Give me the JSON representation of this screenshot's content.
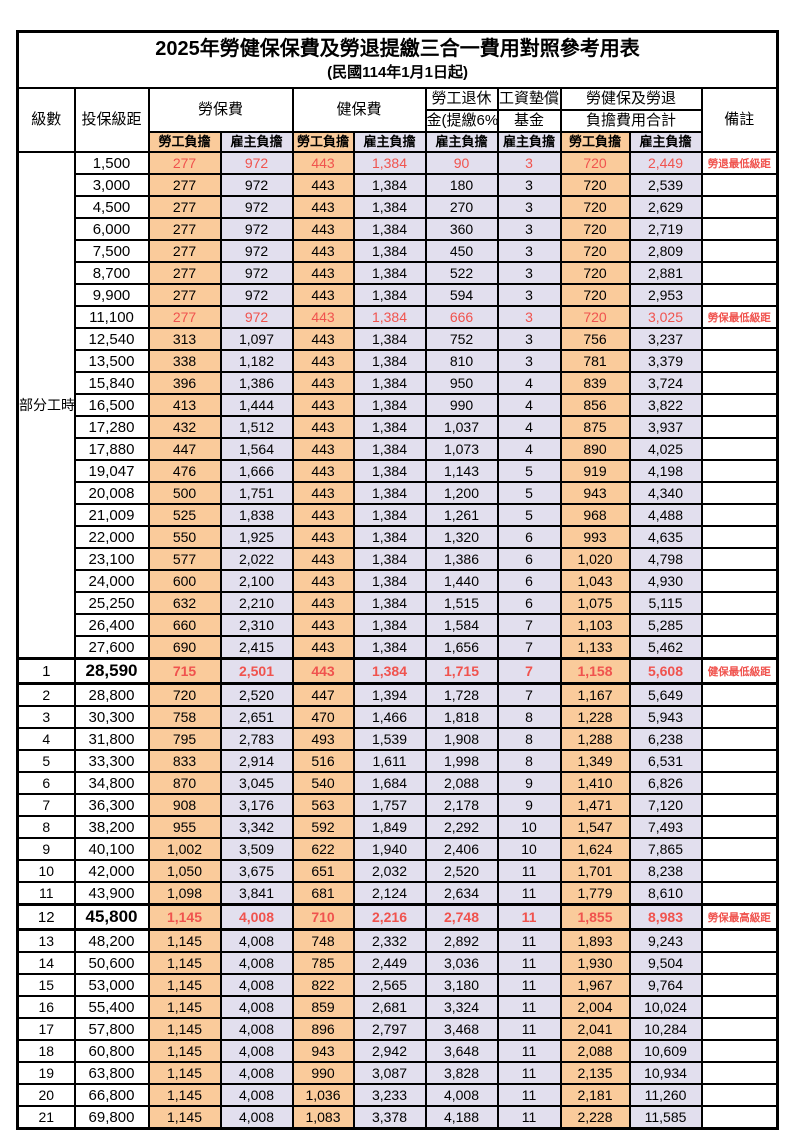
{
  "title": "2025年勞健保保費及勞退提繳三合一費用對照參考用表",
  "subtitle": "(民國114年1月1日起)",
  "colors": {
    "worker_bg": "#FACB9B",
    "employer_bg": "#E2DFEE",
    "highlight_text": "#F0534E",
    "border": "#000000"
  },
  "header": {
    "level": "級數",
    "bracket": "投保級距",
    "labor_ins": "勞保費",
    "health_ins": "健保費",
    "pension_l1": "勞工退休",
    "pension_l2": "金(提繳6%)",
    "wage_fund_l1": "工資墊償",
    "wage_fund_l2": "基金",
    "total_l1": "勞健保及勞退",
    "total_l2": "負擔費用合計",
    "remark": "備註",
    "worker": "勞工負擔",
    "employer": "雇主負擔"
  },
  "part_time_label": "部分工時",
  "rows": [
    {
      "level": "部分工時",
      "level_rowspan": 23,
      "bracket": "1,500",
      "values": [
        "277",
        "972",
        "443",
        "1,384",
        "90",
        "3",
        "720",
        "2,449"
      ],
      "remark": "勞退最低級距",
      "red": true,
      "emphasis": false
    },
    {
      "level": null,
      "bracket": "3,000",
      "values": [
        "277",
        "972",
        "443",
        "1,384",
        "180",
        "3",
        "720",
        "2,539"
      ],
      "remark": "",
      "red": false,
      "emphasis": false
    },
    {
      "level": null,
      "bracket": "4,500",
      "values": [
        "277",
        "972",
        "443",
        "1,384",
        "270",
        "3",
        "720",
        "2,629"
      ],
      "remark": "",
      "red": false,
      "emphasis": false
    },
    {
      "level": null,
      "bracket": "6,000",
      "values": [
        "277",
        "972",
        "443",
        "1,384",
        "360",
        "3",
        "720",
        "2,719"
      ],
      "remark": "",
      "red": false,
      "emphasis": false
    },
    {
      "level": null,
      "bracket": "7,500",
      "values": [
        "277",
        "972",
        "443",
        "1,384",
        "450",
        "3",
        "720",
        "2,809"
      ],
      "remark": "",
      "red": false,
      "emphasis": false
    },
    {
      "level": null,
      "bracket": "8,700",
      "values": [
        "277",
        "972",
        "443",
        "1,384",
        "522",
        "3",
        "720",
        "2,881"
      ],
      "remark": "",
      "red": false,
      "emphasis": false
    },
    {
      "level": null,
      "bracket": "9,900",
      "values": [
        "277",
        "972",
        "443",
        "1,384",
        "594",
        "3",
        "720",
        "2,953"
      ],
      "remark": "",
      "red": false,
      "emphasis": false
    },
    {
      "level": null,
      "bracket": "11,100",
      "values": [
        "277",
        "972",
        "443",
        "1,384",
        "666",
        "3",
        "720",
        "3,025"
      ],
      "remark": "勞保最低級距",
      "red": true,
      "emphasis": false
    },
    {
      "level": null,
      "bracket": "12,540",
      "values": [
        "313",
        "1,097",
        "443",
        "1,384",
        "752",
        "3",
        "756",
        "3,237"
      ],
      "remark": "",
      "red": false,
      "emphasis": false
    },
    {
      "level": null,
      "bracket": "13,500",
      "values": [
        "338",
        "1,182",
        "443",
        "1,384",
        "810",
        "3",
        "781",
        "3,379"
      ],
      "remark": "",
      "red": false,
      "emphasis": false
    },
    {
      "level": null,
      "bracket": "15,840",
      "values": [
        "396",
        "1,386",
        "443",
        "1,384",
        "950",
        "4",
        "839",
        "3,724"
      ],
      "remark": "",
      "red": false,
      "emphasis": false
    },
    {
      "level": null,
      "bracket": "16,500",
      "values": [
        "413",
        "1,444",
        "443",
        "1,384",
        "990",
        "4",
        "856",
        "3,822"
      ],
      "remark": "",
      "red": false,
      "emphasis": false
    },
    {
      "level": null,
      "bracket": "17,280",
      "values": [
        "432",
        "1,512",
        "443",
        "1,384",
        "1,037",
        "4",
        "875",
        "3,937"
      ],
      "remark": "",
      "red": false,
      "emphasis": false
    },
    {
      "level": null,
      "bracket": "17,880",
      "values": [
        "447",
        "1,564",
        "443",
        "1,384",
        "1,073",
        "4",
        "890",
        "4,025"
      ],
      "remark": "",
      "red": false,
      "emphasis": false
    },
    {
      "level": null,
      "bracket": "19,047",
      "values": [
        "476",
        "1,666",
        "443",
        "1,384",
        "1,143",
        "5",
        "919",
        "4,198"
      ],
      "remark": "",
      "red": false,
      "emphasis": false
    },
    {
      "level": null,
      "bracket": "20,008",
      "values": [
        "500",
        "1,751",
        "443",
        "1,384",
        "1,200",
        "5",
        "943",
        "4,340"
      ],
      "remark": "",
      "red": false,
      "emphasis": false
    },
    {
      "level": null,
      "bracket": "21,009",
      "values": [
        "525",
        "1,838",
        "443",
        "1,384",
        "1,261",
        "5",
        "968",
        "4,488"
      ],
      "remark": "",
      "red": false,
      "emphasis": false
    },
    {
      "level": null,
      "bracket": "22,000",
      "values": [
        "550",
        "1,925",
        "443",
        "1,384",
        "1,320",
        "6",
        "993",
        "4,635"
      ],
      "remark": "",
      "red": false,
      "emphasis": false
    },
    {
      "level": null,
      "bracket": "23,100",
      "values": [
        "577",
        "2,022",
        "443",
        "1,384",
        "1,386",
        "6",
        "1,020",
        "4,798"
      ],
      "remark": "",
      "red": false,
      "emphasis": false
    },
    {
      "level": null,
      "bracket": "24,000",
      "values": [
        "600",
        "2,100",
        "443",
        "1,384",
        "1,440",
        "6",
        "1,043",
        "4,930"
      ],
      "remark": "",
      "red": false,
      "emphasis": false
    },
    {
      "level": null,
      "bracket": "25,250",
      "values": [
        "632",
        "2,210",
        "443",
        "1,384",
        "1,515",
        "6",
        "1,075",
        "5,115"
      ],
      "remark": "",
      "red": false,
      "emphasis": false
    },
    {
      "level": null,
      "bracket": "26,400",
      "values": [
        "660",
        "2,310",
        "443",
        "1,384",
        "1,584",
        "7",
        "1,103",
        "5,285"
      ],
      "remark": "",
      "red": false,
      "emphasis": false
    },
    {
      "level": null,
      "bracket": "27,600",
      "values": [
        "690",
        "2,415",
        "443",
        "1,384",
        "1,656",
        "7",
        "1,133",
        "5,462"
      ],
      "remark": "",
      "red": false,
      "emphasis": false
    },
    {
      "level": "1",
      "bracket": "28,590",
      "values": [
        "715",
        "2,501",
        "443",
        "1,384",
        "1,715",
        "7",
        "1,158",
        "5,608"
      ],
      "remark": "健保最低級距",
      "red": true,
      "emphasis": true
    },
    {
      "level": "2",
      "bracket": "28,800",
      "values": [
        "720",
        "2,520",
        "447",
        "1,394",
        "1,728",
        "7",
        "1,167",
        "5,649"
      ],
      "remark": "",
      "red": false,
      "emphasis": false
    },
    {
      "level": "3",
      "bracket": "30,300",
      "values": [
        "758",
        "2,651",
        "470",
        "1,466",
        "1,818",
        "8",
        "1,228",
        "5,943"
      ],
      "remark": "",
      "red": false,
      "emphasis": false
    },
    {
      "level": "4",
      "bracket": "31,800",
      "values": [
        "795",
        "2,783",
        "493",
        "1,539",
        "1,908",
        "8",
        "1,288",
        "6,238"
      ],
      "remark": "",
      "red": false,
      "emphasis": false
    },
    {
      "level": "5",
      "bracket": "33,300",
      "values": [
        "833",
        "2,914",
        "516",
        "1,611",
        "1,998",
        "8",
        "1,349",
        "6,531"
      ],
      "remark": "",
      "red": false,
      "emphasis": false
    },
    {
      "level": "6",
      "bracket": "34,800",
      "values": [
        "870",
        "3,045",
        "540",
        "1,684",
        "2,088",
        "9",
        "1,410",
        "6,826"
      ],
      "remark": "",
      "red": false,
      "emphasis": false
    },
    {
      "level": "7",
      "bracket": "36,300",
      "values": [
        "908",
        "3,176",
        "563",
        "1,757",
        "2,178",
        "9",
        "1,471",
        "7,120"
      ],
      "remark": "",
      "red": false,
      "emphasis": false
    },
    {
      "level": "8",
      "bracket": "38,200",
      "values": [
        "955",
        "3,342",
        "592",
        "1,849",
        "2,292",
        "10",
        "1,547",
        "7,493"
      ],
      "remark": "",
      "red": false,
      "emphasis": false
    },
    {
      "level": "9",
      "bracket": "40,100",
      "values": [
        "1,002",
        "3,509",
        "622",
        "1,940",
        "2,406",
        "10",
        "1,624",
        "7,865"
      ],
      "remark": "",
      "red": false,
      "emphasis": false
    },
    {
      "level": "10",
      "bracket": "42,000",
      "values": [
        "1,050",
        "3,675",
        "651",
        "2,032",
        "2,520",
        "11",
        "1,701",
        "8,238"
      ],
      "remark": "",
      "red": false,
      "emphasis": false
    },
    {
      "level": "11",
      "bracket": "43,900",
      "values": [
        "1,098",
        "3,841",
        "681",
        "2,124",
        "2,634",
        "11",
        "1,779",
        "8,610"
      ],
      "remark": "",
      "red": false,
      "emphasis": false
    },
    {
      "level": "12",
      "bracket": "45,800",
      "values": [
        "1,145",
        "4,008",
        "710",
        "2,216",
        "2,748",
        "11",
        "1,855",
        "8,983"
      ],
      "remark": "勞保最高級距",
      "red": true,
      "emphasis": true
    },
    {
      "level": "13",
      "bracket": "48,200",
      "values": [
        "1,145",
        "4,008",
        "748",
        "2,332",
        "2,892",
        "11",
        "1,893",
        "9,243"
      ],
      "remark": "",
      "red": false,
      "emphasis": false
    },
    {
      "level": "14",
      "bracket": "50,600",
      "values": [
        "1,145",
        "4,008",
        "785",
        "2,449",
        "3,036",
        "11",
        "1,930",
        "9,504"
      ],
      "remark": "",
      "red": false,
      "emphasis": false
    },
    {
      "level": "15",
      "bracket": "53,000",
      "values": [
        "1,145",
        "4,008",
        "822",
        "2,565",
        "3,180",
        "11",
        "1,967",
        "9,764"
      ],
      "remark": "",
      "red": false,
      "emphasis": false
    },
    {
      "level": "16",
      "bracket": "55,400",
      "values": [
        "1,145",
        "4,008",
        "859",
        "2,681",
        "3,324",
        "11",
        "2,004",
        "10,024"
      ],
      "remark": "",
      "red": false,
      "emphasis": false
    },
    {
      "level": "17",
      "bracket": "57,800",
      "values": [
        "1,145",
        "4,008",
        "896",
        "2,797",
        "3,468",
        "11",
        "2,041",
        "10,284"
      ],
      "remark": "",
      "red": false,
      "emphasis": false
    },
    {
      "level": "18",
      "bracket": "60,800",
      "values": [
        "1,145",
        "4,008",
        "943",
        "2,942",
        "3,648",
        "11",
        "2,088",
        "10,609"
      ],
      "remark": "",
      "red": false,
      "emphasis": false
    },
    {
      "level": "19",
      "bracket": "63,800",
      "values": [
        "1,145",
        "4,008",
        "990",
        "3,087",
        "3,828",
        "11",
        "2,135",
        "10,934"
      ],
      "remark": "",
      "red": false,
      "emphasis": false
    },
    {
      "level": "20",
      "bracket": "66,800",
      "values": [
        "1,145",
        "4,008",
        "1,036",
        "3,233",
        "4,008",
        "11",
        "2,181",
        "11,260"
      ],
      "remark": "",
      "red": false,
      "emphasis": false
    },
    {
      "level": "21",
      "bracket": "69,800",
      "values": [
        "1,145",
        "4,008",
        "1,083",
        "3,378",
        "4,188",
        "11",
        "2,228",
        "11,585"
      ],
      "remark": "",
      "red": false,
      "emphasis": false
    }
  ]
}
